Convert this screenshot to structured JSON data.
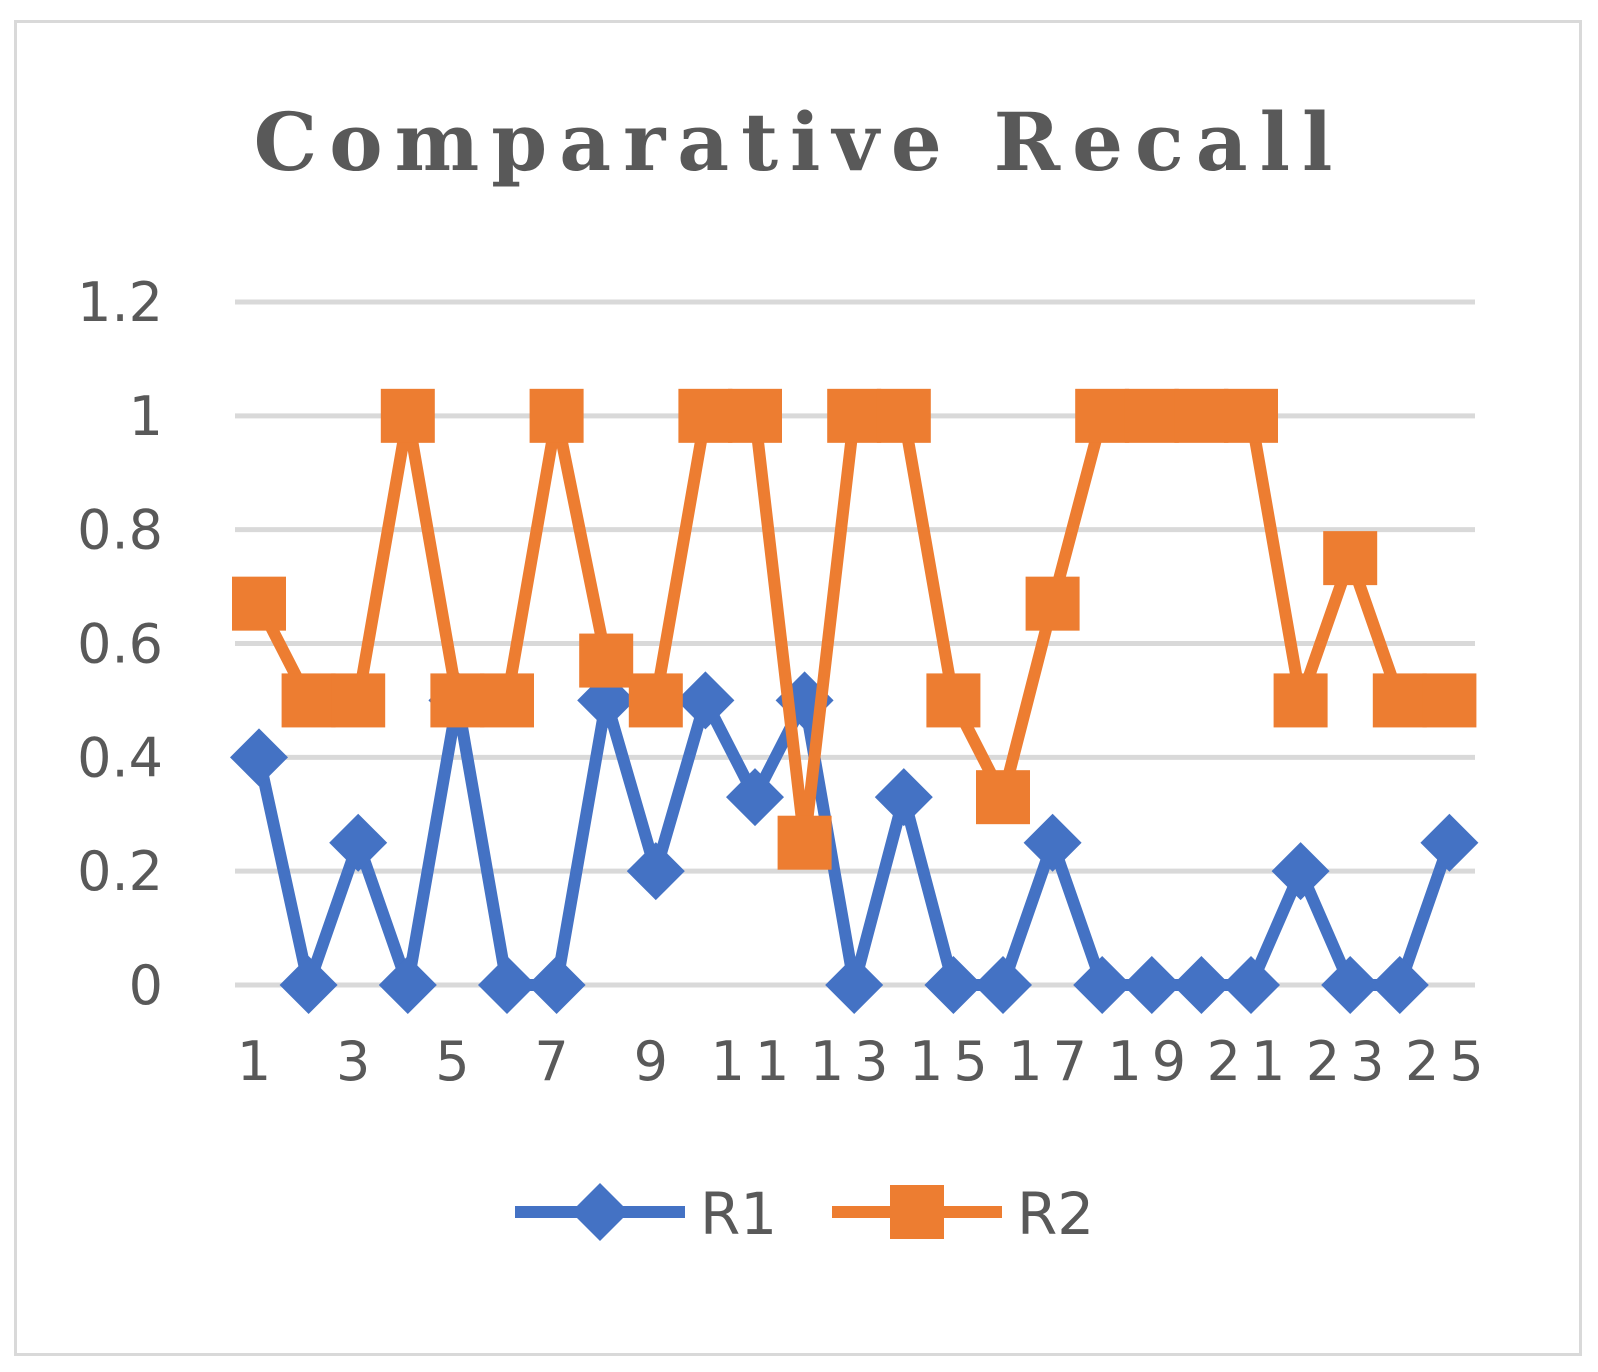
{
  "chart_data": {
    "type": "line",
    "title": "Comparative Recall",
    "xlabel": "",
    "ylabel": "",
    "x": [
      1,
      2,
      3,
      4,
      5,
      6,
      7,
      8,
      9,
      10,
      11,
      12,
      13,
      14,
      15,
      16,
      17,
      18,
      19,
      20,
      21,
      22,
      23,
      24,
      25
    ],
    "x_tick_labels": [
      "1",
      "3",
      "5",
      "7",
      "9",
      "11",
      "13",
      "15",
      "17",
      "19",
      "21",
      "23",
      "25"
    ],
    "y_tick_labels": [
      "0",
      "0.2",
      "0.4",
      "0.6",
      "0.8",
      "1",
      "1.2"
    ],
    "ylim": [
      0,
      1.2
    ],
    "grid": true,
    "legend_position": "bottom",
    "series": [
      {
        "name": "R1",
        "color": "#4472c4",
        "marker": "diamond",
        "values": [
          0.4,
          0,
          0.25,
          0,
          0.5,
          0,
          0,
          0.5,
          0.2,
          0.5,
          0.33,
          0.5,
          0,
          0.33,
          0,
          0,
          0.25,
          0,
          0,
          0,
          0,
          0.2,
          0,
          0,
          0.25
        ]
      },
      {
        "name": "R2",
        "color": "#ed7d31",
        "marker": "square",
        "values": [
          0.67,
          0.5,
          0.5,
          1,
          0.5,
          0.5,
          1,
          0.57,
          0.5,
          1,
          1,
          0.25,
          1,
          1,
          0.5,
          0.33,
          0.67,
          1,
          1,
          1,
          1,
          0.5,
          0.75,
          0.5,
          0.5
        ]
      }
    ]
  }
}
